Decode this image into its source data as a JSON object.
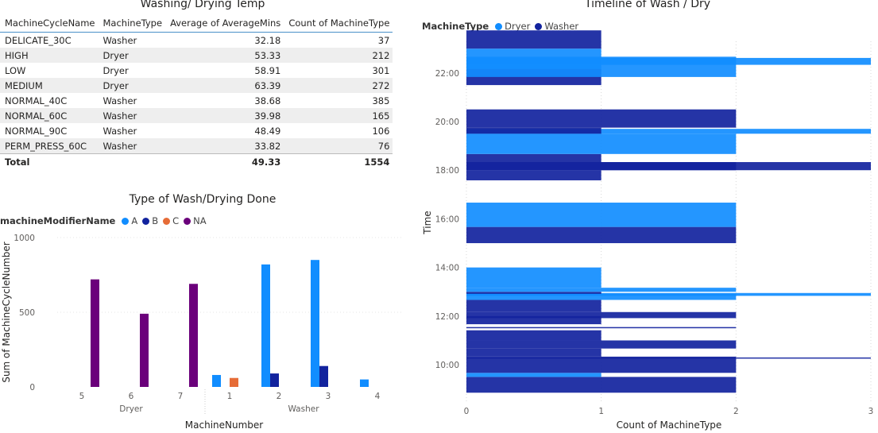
{
  "table_visual": {
    "title": "Washing/ Drying Temp",
    "columns": [
      "MachineCycleName",
      "MachineType",
      "Average of AverageMins",
      "Count of MachineType"
    ],
    "rows": [
      [
        "DELICATE_30C",
        "Washer",
        "32.18",
        "37"
      ],
      [
        "HIGH",
        "Dryer",
        "53.33",
        "212"
      ],
      [
        "LOW",
        "Dryer",
        "58.91",
        "301"
      ],
      [
        "MEDIUM",
        "Dryer",
        "63.39",
        "272"
      ],
      [
        "NORMAL_40C",
        "Washer",
        "38.68",
        "385"
      ],
      [
        "NORMAL_60C",
        "Washer",
        "39.98",
        "165"
      ],
      [
        "NORMAL_90C",
        "Washer",
        "48.49",
        "106"
      ],
      [
        "PERM_PRESS_60C",
        "Washer",
        "33.82",
        "76"
      ]
    ],
    "total": [
      "Total",
      "",
      "49.33",
      "1554"
    ]
  },
  "chart_data": [
    {
      "type": "bar",
      "title": "Type of Wash/Drying Done",
      "legend_title": "machineModifierName",
      "legend": [
        {
          "name": "A",
          "color": "#118dff"
        },
        {
          "name": "B",
          "color": "#12239e"
        },
        {
          "name": "C",
          "color": "#e66c37"
        },
        {
          "name": "NA",
          "color": "#6b007b"
        }
      ],
      "xlabel": "MachineNumber",
      "ylabel": "Sum of MachineCycleNumber",
      "ylim": [
        0,
        1000
      ],
      "yticks": [
        0,
        500,
        1000
      ],
      "yticks_labels": [
        "0",
        "500",
        "1000"
      ],
      "groups": [
        {
          "name": "Dryer",
          "categories": [
            "5",
            "6",
            "7"
          ]
        },
        {
          "name": "Washer",
          "categories": [
            "1",
            "2",
            "3",
            "4"
          ]
        }
      ],
      "series": [
        {
          "name": "A",
          "values": [
            null,
            null,
            null,
            80,
            820,
            850,
            50
          ]
        },
        {
          "name": "B",
          "values": [
            null,
            null,
            null,
            null,
            90,
            140,
            null
          ]
        },
        {
          "name": "C",
          "values": [
            null,
            null,
            null,
            60,
            null,
            null,
            null
          ]
        },
        {
          "name": "NA",
          "values": [
            720,
            490,
            690,
            null,
            null,
            null,
            null
          ]
        }
      ]
    },
    {
      "type": "bar",
      "orientation": "horizontal",
      "title": "Timeline of Wash / Dry",
      "legend_title": "MachineType",
      "legend": [
        {
          "name": "Dryer",
          "color": "#118dff"
        },
        {
          "name": "Washer",
          "color": "#12239e"
        }
      ],
      "xlabel": "Count of MachineType",
      "ylabel": "Time",
      "xlim": [
        0,
        3
      ],
      "xticks": [
        0,
        1,
        2,
        3
      ],
      "yticks": [
        "10:00",
        "12:00",
        "14:00",
        "16:00",
        "18:00",
        "20:00",
        "22:00"
      ],
      "ylim_hours": [
        8.5,
        23.3
      ],
      "bars": [
        {
          "start": "08:51",
          "end": "09:30",
          "count": 2,
          "type": "Washer"
        },
        {
          "start": "09:30",
          "end": "09:40",
          "count": 1,
          "type": "Dryer"
        },
        {
          "start": "09:40",
          "end": "10:20",
          "count": 2,
          "type": "Washer"
        },
        {
          "start": "10:15",
          "end": "10:18",
          "count": 3,
          "type": "Washer"
        },
        {
          "start": "10:20",
          "end": "10:40",
          "count": 1,
          "type": "Washer"
        },
        {
          "start": "10:40",
          "end": "11:00",
          "count": 2,
          "type": "Washer"
        },
        {
          "start": "11:00",
          "end": "11:25",
          "count": 1,
          "type": "Washer"
        },
        {
          "start": "11:30",
          "end": "11:33",
          "count": 2,
          "type": "Washer"
        },
        {
          "start": "11:40",
          "end": "12:00",
          "count": 1,
          "type": "Washer"
        },
        {
          "start": "11:55",
          "end": "12:10",
          "count": 2,
          "type": "Washer"
        },
        {
          "start": "12:10",
          "end": "12:40",
          "count": 1,
          "type": "Washer"
        },
        {
          "start": "12:40",
          "end": "12:55",
          "count": 2,
          "type": "Dryer"
        },
        {
          "start": "12:50",
          "end": "12:57",
          "count": 3,
          "type": "Dryer"
        },
        {
          "start": "12:55",
          "end": "13:00",
          "count": 1,
          "type": "Washer"
        },
        {
          "start": "13:00",
          "end": "13:10",
          "count": 2,
          "type": "Dryer"
        },
        {
          "start": "13:10",
          "end": "14:00",
          "count": 1,
          "type": "Dryer"
        },
        {
          "start": "15:00",
          "end": "15:40",
          "count": 2,
          "type": "Washer"
        },
        {
          "start": "15:40",
          "end": "16:40",
          "count": 2,
          "type": "Dryer"
        },
        {
          "start": "17:35",
          "end": "18:00",
          "count": 1,
          "type": "Washer"
        },
        {
          "start": "18:00",
          "end": "18:20",
          "count": 2,
          "type": "Washer"
        },
        {
          "start": "18:00",
          "end": "18:20",
          "count": 3,
          "type": "Washer"
        },
        {
          "start": "18:20",
          "end": "18:40",
          "count": 1,
          "type": "Washer"
        },
        {
          "start": "18:40",
          "end": "19:30",
          "count": 2,
          "type": "Dryer"
        },
        {
          "start": "19:30",
          "end": "19:42",
          "count": 3,
          "type": "Dryer"
        },
        {
          "start": "19:30",
          "end": "19:45",
          "count": 1,
          "type": "Washer"
        },
        {
          "start": "19:45",
          "end": "20:30",
          "count": 2,
          "type": "Washer"
        },
        {
          "start": "21:30",
          "end": "22:10",
          "count": 1,
          "type": "Washer"
        },
        {
          "start": "21:50",
          "end": "22:40",
          "count": 2,
          "type": "Dryer"
        },
        {
          "start": "22:20",
          "end": "22:37",
          "count": 3,
          "type": "Dryer"
        },
        {
          "start": "22:10",
          "end": "23:00",
          "count": 1,
          "type": "Dryer"
        },
        {
          "start": "23:00",
          "end": "23:45",
          "count": 1,
          "type": "Washer"
        }
      ]
    }
  ]
}
